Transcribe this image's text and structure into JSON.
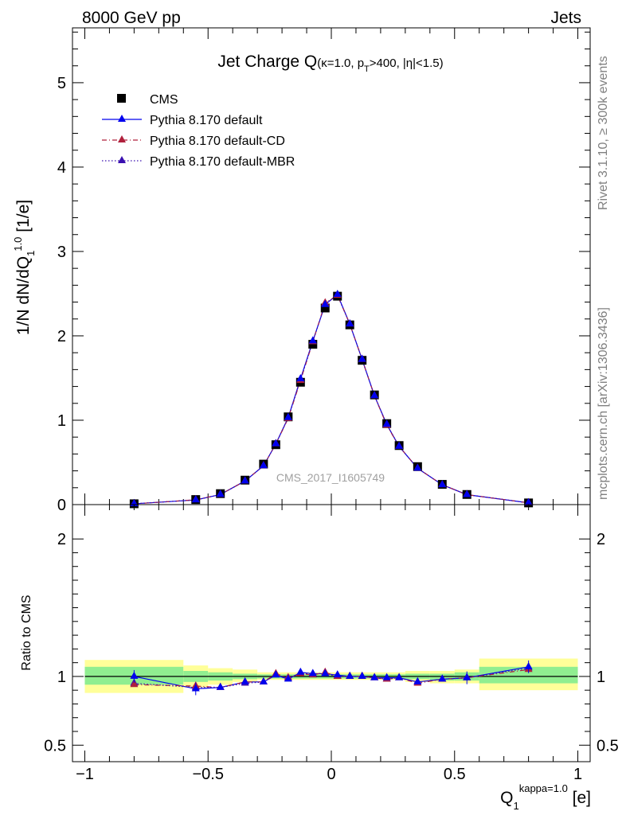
{
  "header": {
    "left": "8000 GeV pp",
    "right": "Jets"
  },
  "side_notes": {
    "rivet": "Rivet 3.1.10, ≥ 300k events",
    "mcplots": "mcplots.cern.ch [arXiv:1306.3436]"
  },
  "chart_data": [
    {
      "type": "scatter",
      "title": "Jet Charge Q(κ=1.0, p_T>400, |η|<1.5)",
      "title_parts": {
        "main": "Jet Charge Q",
        "kappa": "(κ=1.0, p",
        "sub_T": "T",
        "rest": ">400, |η|<1.5)"
      },
      "watermark": "CMS_2017_I1605749",
      "ylabel_parts": {
        "main": "1/N dN/dQ",
        "sub": "1",
        "sup": "1.0",
        "unit": " [1/e]"
      },
      "xlim": [
        -1.05,
        1.05
      ],
      "ylim": [
        0,
        5.65
      ],
      "yticks": [
        0,
        1,
        2,
        3,
        4,
        5
      ],
      "legend_position": "top-left",
      "legend": [
        {
          "label": "CMS",
          "color": "#000000",
          "style": "data"
        },
        {
          "label": "Pythia 8.170 default",
          "color": "#0000ee",
          "style": "solid"
        },
        {
          "label": "Pythia 8.170 default-CD",
          "color": "#b0203c",
          "style": "dashdot"
        },
        {
          "label": "Pythia 8.170 default-MBR",
          "color": "#3a10b0",
          "style": "dotted"
        }
      ],
      "x": [
        -0.8,
        -0.55,
        -0.45,
        -0.35,
        -0.275,
        -0.225,
        -0.175,
        -0.125,
        -0.075,
        -0.025,
        0.025,
        0.075,
        0.125,
        0.175,
        0.225,
        0.275,
        0.35,
        0.45,
        0.55,
        0.8
      ],
      "series": [
        {
          "name": "CMS",
          "color": "#000000",
          "values": [
            0.01,
            0.06,
            0.13,
            0.29,
            0.48,
            0.71,
            1.04,
            1.45,
            1.9,
            2.33,
            2.47,
            2.13,
            1.71,
            1.3,
            0.96,
            0.7,
            0.45,
            0.24,
            0.12,
            0.02
          ]
        },
        {
          "name": "Pythia 8.170 default",
          "color": "#0000ee",
          "values": [
            0.01,
            0.055,
            0.12,
            0.28,
            0.46,
            0.72,
            1.03,
            1.49,
            1.94,
            2.37,
            2.49,
            2.14,
            1.72,
            1.29,
            0.95,
            0.69,
            0.43,
            0.235,
            0.118,
            0.021
          ]
        },
        {
          "name": "Pythia 8.170 default-CD",
          "color": "#b0203c",
          "values": [
            0.009,
            0.057,
            0.12,
            0.28,
            0.46,
            0.72,
            1.02,
            1.47,
            1.93,
            2.39,
            2.48,
            2.14,
            1.72,
            1.29,
            0.94,
            0.69,
            0.43,
            0.235,
            0.118,
            0.021
          ]
        },
        {
          "name": "Pythia 8.170 default-MBR",
          "color": "#3a10b0",
          "values": [
            0.01,
            0.055,
            0.12,
            0.28,
            0.46,
            0.72,
            1.03,
            1.48,
            1.93,
            2.38,
            2.48,
            2.14,
            1.72,
            1.29,
            0.95,
            0.69,
            0.43,
            0.235,
            0.118,
            0.021
          ]
        }
      ]
    },
    {
      "type": "line",
      "ylabel": "Ratio to CMS",
      "xlabel_parts": {
        "main": "Q",
        "sub": "1",
        "sup": "kappa=1.0",
        "unit": " [e]"
      },
      "xlim": [
        -1.05,
        1.05
      ],
      "ylim": [
        0.38,
        2.25
      ],
      "xticks": [
        -1,
        -0.5,
        0,
        0.5,
        1
      ],
      "xtick_labels": [
        "−1",
        "−0.5",
        "0",
        "0.5",
        "1"
      ],
      "yticks": [
        0.5,
        1,
        2
      ],
      "ytick_labels": [
        "0.5",
        "1",
        "2"
      ],
      "bands": [
        {
          "x": [
            -1.0,
            -0.6
          ],
          "green": [
            0.94,
            1.07
          ],
          "yellow": [
            0.88,
            1.12
          ]
        },
        {
          "x": [
            -0.6,
            -0.5
          ],
          "green": [
            0.96,
            1.04
          ],
          "yellow": [
            0.92,
            1.08
          ]
        },
        {
          "x": [
            -0.5,
            -0.4
          ],
          "green": [
            0.97,
            1.03
          ],
          "yellow": [
            0.94,
            1.06
          ]
        },
        {
          "x": [
            -0.4,
            -0.3
          ],
          "green": [
            0.98,
            1.02
          ],
          "yellow": [
            0.96,
            1.05
          ]
        },
        {
          "x": [
            -0.3,
            0.3
          ],
          "green": [
            0.985,
            1.015
          ],
          "yellow": [
            0.975,
            1.03
          ]
        },
        {
          "x": [
            0.3,
            0.4
          ],
          "green": [
            0.98,
            1.02
          ],
          "yellow": [
            0.96,
            1.04
          ]
        },
        {
          "x": [
            0.4,
            0.5
          ],
          "green": [
            0.97,
            1.02
          ],
          "yellow": [
            0.95,
            1.04
          ]
        },
        {
          "x": [
            0.5,
            0.6
          ],
          "green": [
            0.97,
            1.03
          ],
          "yellow": [
            0.95,
            1.05
          ]
        },
        {
          "x": [
            0.6,
            1.0
          ],
          "green": [
            0.95,
            1.07
          ],
          "yellow": [
            0.9,
            1.13
          ]
        }
      ],
      "band_colors": {
        "green": "#90ee90",
        "yellow": "#ffff99"
      },
      "x": [
        -0.8,
        -0.55,
        -0.45,
        -0.35,
        -0.275,
        -0.225,
        -0.175,
        -0.125,
        -0.075,
        -0.025,
        0.025,
        0.075,
        0.125,
        0.175,
        0.225,
        0.275,
        0.35,
        0.45,
        0.55,
        0.8
      ],
      "series": [
        {
          "name": "Pythia 8.170 default",
          "color": "#0000ee",
          "values": [
            1.0,
            0.91,
            0.92,
            0.96,
            0.96,
            1.01,
            0.98,
            1.03,
            1.02,
            1.02,
            1.01,
            1.0,
            1.0,
            0.99,
            0.99,
            0.99,
            0.96,
            0.98,
            0.99,
            1.07
          ]
        },
        {
          "name": "Pythia 8.170 default-CD",
          "color": "#b0203c",
          "values": [
            0.94,
            0.93,
            0.92,
            0.96,
            0.96,
            1.02,
            0.99,
            1.02,
            1.01,
            1.03,
            1.0,
            1.0,
            1.0,
            0.99,
            0.98,
            0.99,
            0.95,
            0.98,
            0.99,
            1.05
          ]
        },
        {
          "name": "Pythia 8.170 default-MBR",
          "color": "#3a10b0",
          "values": [
            0.95,
            0.92,
            0.92,
            0.95,
            0.96,
            1.01,
            0.99,
            1.02,
            1.02,
            1.02,
            1.0,
            1.0,
            1.0,
            0.99,
            0.98,
            0.99,
            0.96,
            0.98,
            0.99,
            1.06
          ]
        }
      ]
    }
  ]
}
